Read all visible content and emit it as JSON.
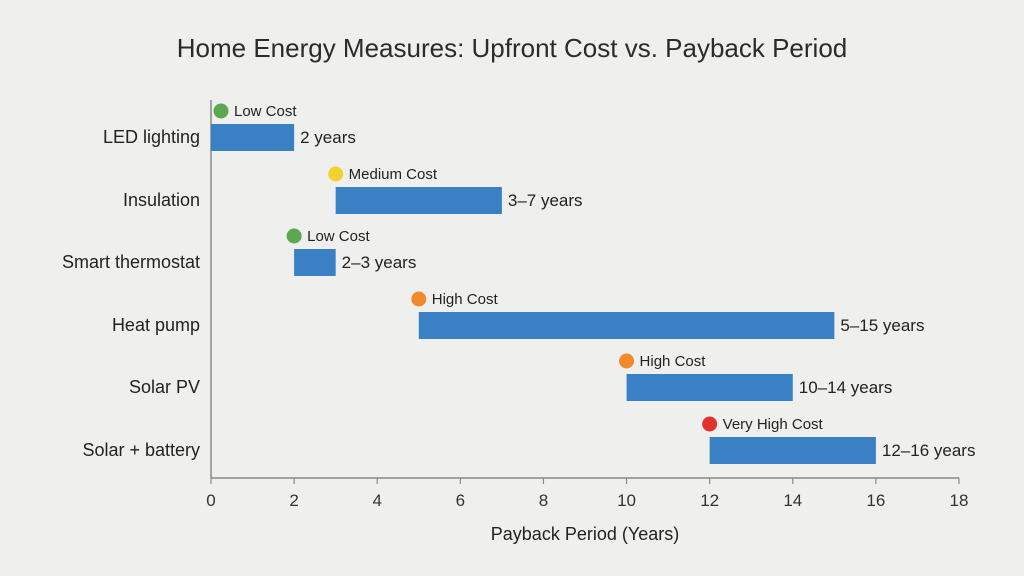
{
  "chart_data": {
    "type": "bar",
    "orientation": "horizontal-range",
    "title": "Home Energy Measures: Upfront Cost vs. Payback Period",
    "xlabel": "Payback Period (Years)",
    "ylabel": "",
    "xlim": [
      0,
      18
    ],
    "xticks": [
      "0",
      "2",
      "4",
      "6",
      "8",
      "10",
      "12",
      "14",
      "16",
      "18"
    ],
    "grid": false,
    "bar_color": "#3a80c4",
    "categories": [
      "LED lighting",
      "Insulation",
      "Smart thermostat",
      "Heat pump",
      "Solar PV",
      "Solar + battery"
    ],
    "ranges": [
      [
        0,
        2
      ],
      [
        3,
        7
      ],
      [
        2,
        3
      ],
      [
        5,
        15
      ],
      [
        10,
        14
      ],
      [
        12,
        16
      ]
    ],
    "range_labels": [
      "2 years",
      "3–7 years",
      "2–3 years",
      "5–15 years",
      "10–14 years",
      "12–16 years"
    ],
    "cost_labels": [
      "Low Cost",
      "Medium Cost",
      "Low Cost",
      "High Cost",
      "High Cost",
      "Very High Cost"
    ],
    "cost_colors": {
      "Low Cost": "#5aa84f",
      "Medium Cost": "#f2d22e",
      "High Cost": "#f08a2c",
      "Very High Cost": "#e0332f"
    }
  }
}
